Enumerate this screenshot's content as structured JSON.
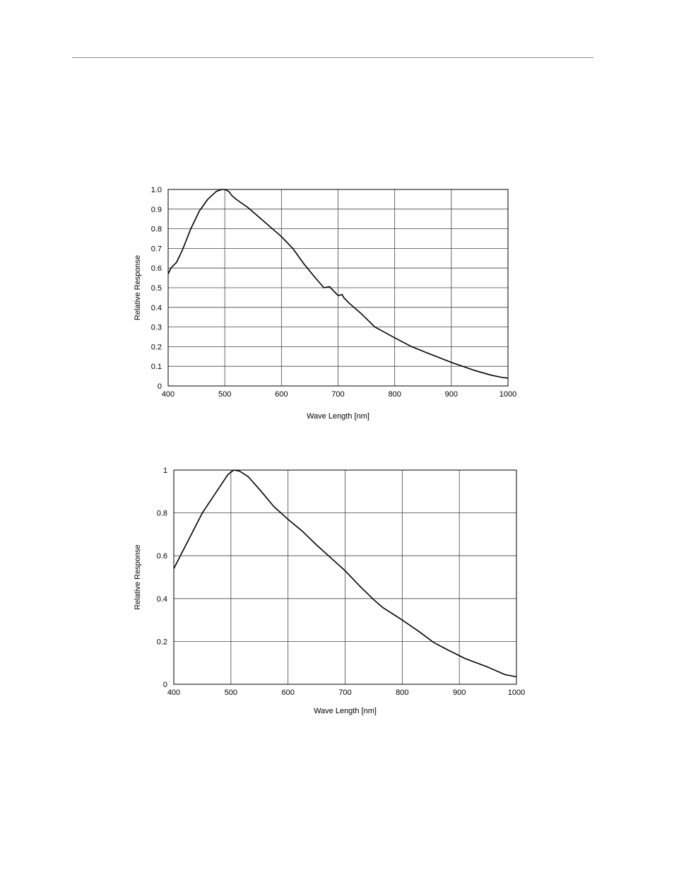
{
  "colors": {
    "grid": "#444444",
    "curve": "#000000",
    "frame": "#000000",
    "rule": "#8a8a8a"
  },
  "chart_data": [
    {
      "type": "line",
      "xlabel": "Wave Length [nm]",
      "ylabel": "Relative Response",
      "xlim": [
        400,
        1000
      ],
      "ylim": [
        0,
        1.0
      ],
      "xticks": [
        400,
        500,
        600,
        700,
        800,
        900,
        1000
      ],
      "xtick_labels": [
        "400",
        "500",
        "600",
        "700",
        "800",
        "900",
        "1000"
      ],
      "yticks": [
        0,
        0.1,
        0.2,
        0.3,
        0.4,
        0.5,
        0.6,
        0.7,
        0.8,
        0.9,
        1.0
      ],
      "ytick_labels": [
        "0",
        "0.1",
        "0.2",
        "0.3",
        "0.4",
        "0.5",
        "0.6",
        "0.7",
        "0.8",
        "0.9",
        "1.0"
      ],
      "grid": true,
      "series": [
        {
          "x": [
            400,
            405,
            415,
            425,
            440,
            455,
            470,
            485,
            495,
            500,
            507,
            512,
            520,
            530,
            540,
            560,
            580,
            600,
            610,
            620,
            640,
            660,
            675,
            685,
            690,
            700,
            707,
            710,
            720,
            740,
            765,
            800,
            830,
            860,
            900,
            940,
            970,
            990,
            1000
          ],
          "y": [
            0.57,
            0.6,
            0.63,
            0.69,
            0.8,
            0.89,
            0.95,
            0.99,
            1.0,
            1.0,
            0.99,
            0.97,
            0.95,
            0.93,
            0.91,
            0.86,
            0.81,
            0.76,
            0.73,
            0.7,
            0.62,
            0.55,
            0.5,
            0.505,
            0.49,
            0.46,
            0.465,
            0.45,
            0.42,
            0.37,
            0.3,
            0.245,
            0.2,
            0.165,
            0.12,
            0.08,
            0.055,
            0.043,
            0.04
          ]
        }
      ]
    },
    {
      "type": "line",
      "xlabel": "Wave Length [nm]",
      "ylabel": "Relative Response",
      "xlim": [
        400,
        1000
      ],
      "ylim": [
        0,
        1
      ],
      "xticks": [
        400,
        500,
        600,
        700,
        800,
        900,
        1000
      ],
      "xtick_labels": [
        "400",
        "500",
        "600",
        "700",
        "800",
        "900",
        "1000"
      ],
      "yticks": [
        0,
        0.2,
        0.4,
        0.6,
        0.8,
        1
      ],
      "ytick_labels": [
        "0",
        "0.2",
        "0.4",
        "0.6",
        "0.8",
        "1"
      ],
      "grid": true,
      "series": [
        {
          "x": [
            400,
            425,
            450,
            475,
            495,
            505,
            515,
            530,
            550,
            575,
            600,
            625,
            650,
            675,
            700,
            725,
            750,
            765,
            800,
            830,
            855,
            880,
            910,
            950,
            980,
            1000
          ],
          "y": [
            0.54,
            0.67,
            0.8,
            0.9,
            0.98,
            1.0,
            0.995,
            0.97,
            0.91,
            0.83,
            0.77,
            0.715,
            0.65,
            0.59,
            0.53,
            0.46,
            0.395,
            0.36,
            0.3,
            0.245,
            0.195,
            0.16,
            0.12,
            0.08,
            0.045,
            0.035
          ]
        }
      ]
    }
  ]
}
